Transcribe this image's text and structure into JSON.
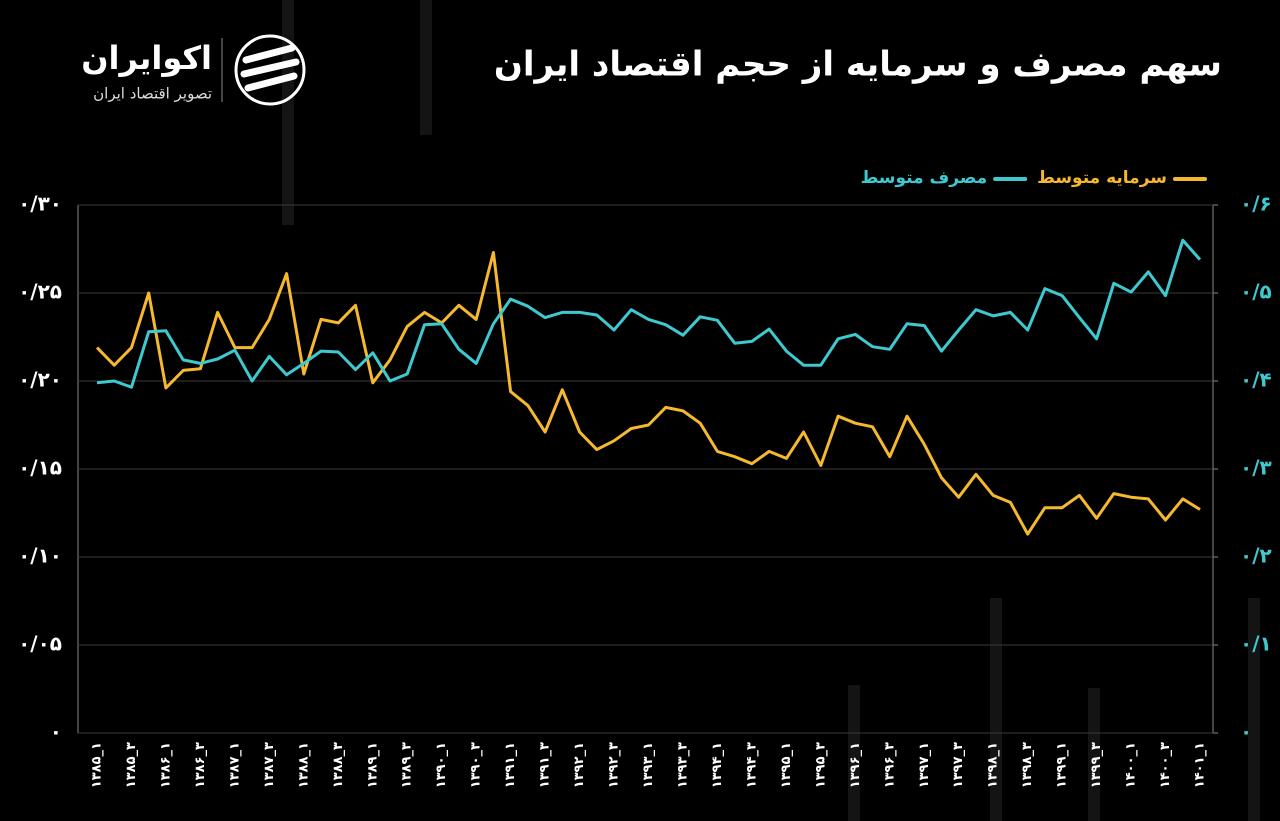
{
  "header": {
    "logo": "اکوایران",
    "logo_subtitle": "تصویر اقتصاد ایران"
  },
  "chart_data": {
    "type": "line",
    "title": "سهم مصرف و سرمایه از حجم اقتصاد ایران",
    "categories": [
      "۱۳۸۵_۱",
      null,
      "۱۳۸۵_۳",
      null,
      "۱۳۸۶_۱",
      null,
      "۱۳۸۶_۳",
      null,
      "۱۳۸۷_۱",
      null,
      "۱۳۸۷_۳",
      null,
      "۱۳۸۸_۱",
      null,
      "۱۳۸۸_۳",
      null,
      "۱۳۸۹_۱",
      null,
      "۱۳۸۹_۳",
      null,
      "۱۳۹۰_۱",
      null,
      "۱۳۹۰_۳",
      null,
      "۱۳۹۱_۱",
      null,
      "۱۳۹۱_۳",
      null,
      "۱۳۹۲_۱",
      null,
      "۱۳۹۲_۳",
      null,
      "۱۳۹۳_۱",
      null,
      "۱۳۹۳_۳",
      null,
      "۱۳۹۴_۱",
      null,
      "۱۳۹۴_۳",
      null,
      "۱۳۹۵_۱",
      null,
      "۱۳۹۵_۳",
      null,
      "۱۳۹۶_۱",
      null,
      "۱۳۹۶_۳",
      null,
      "۱۳۹۷_۱",
      null,
      "۱۳۹۷_۳",
      null,
      "۱۳۹۸_۱",
      null,
      "۱۳۹۸_۳",
      null,
      "۱۳۹۹_۱",
      null,
      "۱۳۹۹_۳",
      null,
      "۱۴۰۰_۱",
      null,
      "۱۴۰۰_۳",
      null,
      "۱۴۰۱_۱"
    ],
    "series": [
      {
        "name": "سرمایه متوسط",
        "color": "#f5b82e",
        "axis": "y",
        "values": [
          0.219,
          0.209,
          0.219,
          0.25,
          0.196,
          0.206,
          0.207,
          0.239,
          0.219,
          0.219,
          0.235,
          0.261,
          0.204,
          0.235,
          0.233,
          0.243,
          0.199,
          0.212,
          0.231,
          0.239,
          0.233,
          0.243,
          0.235,
          0.273,
          0.194,
          0.186,
          0.171,
          0.195,
          0.171,
          0.161,
          0.166,
          0.173,
          0.175,
          0.185,
          0.183,
          0.176,
          0.16,
          0.157,
          0.153,
          0.16,
          0.156,
          0.171,
          0.152,
          0.18,
          0.176,
          0.174,
          0.157,
          0.18,
          0.164,
          0.145,
          0.134,
          0.147,
          0.135,
          0.131,
          0.113,
          0.128,
          0.128,
          0.135,
          0.122,
          0.136,
          0.134,
          0.133,
          0.121,
          0.133,
          0.127
        ]
      },
      {
        "name": "مصرف متوسط",
        "color": "#3ec9d0",
        "axis": "y2",
        "values": [
          0.398,
          0.4,
          0.393,
          0.456,
          0.457,
          0.424,
          0.42,
          0.425,
          0.435,
          0.4,
          0.428,
          0.407,
          0.42,
          0.434,
          0.433,
          0.413,
          0.432,
          0.4,
          0.408,
          0.464,
          0.465,
          0.436,
          0.42,
          0.465,
          0.493,
          0.485,
          0.472,
          0.478,
          0.478,
          0.475,
          0.458,
          0.481,
          0.47,
          0.464,
          0.452,
          0.473,
          0.469,
          0.443,
          0.445,
          0.459,
          0.434,
          0.418,
          0.418,
          0.448,
          0.453,
          0.439,
          0.436,
          0.465,
          0.463,
          0.434,
          0.458,
          0.481,
          0.474,
          0.478,
          0.458,
          0.505,
          0.497,
          0.472,
          0.448,
          0.511,
          0.501,
          0.524,
          0.497,
          0.56,
          0.538
        ]
      }
    ],
    "ylim": [
      0,
      0.3
    ],
    "yticks": [
      {
        "value": 0,
        "label": "۰"
      },
      {
        "value": 0.05,
        "label": "۰/۰۵"
      },
      {
        "value": 0.1,
        "label": "۰/۱۰"
      },
      {
        "value": 0.15,
        "label": "۰/۱۵"
      },
      {
        "value": 0.2,
        "label": "۰/۲۰"
      },
      {
        "value": 0.25,
        "label": "۰/۲۵"
      },
      {
        "value": 0.3,
        "label": "۰/۳۰"
      }
    ],
    "y2lim": [
      0,
      0.6
    ],
    "y2ticks": [
      {
        "value": 0,
        "label": "۰"
      },
      {
        "value": 0.1,
        "label": "۰/۱"
      },
      {
        "value": 0.2,
        "label": "۰/۲"
      },
      {
        "value": 0.3,
        "label": "۰/۳"
      },
      {
        "value": 0.4,
        "label": "۰/۴"
      },
      {
        "value": 0.5,
        "label": "۰/۵"
      },
      {
        "value": 0.6,
        "label": "۰/۶"
      }
    ],
    "grid": true
  }
}
